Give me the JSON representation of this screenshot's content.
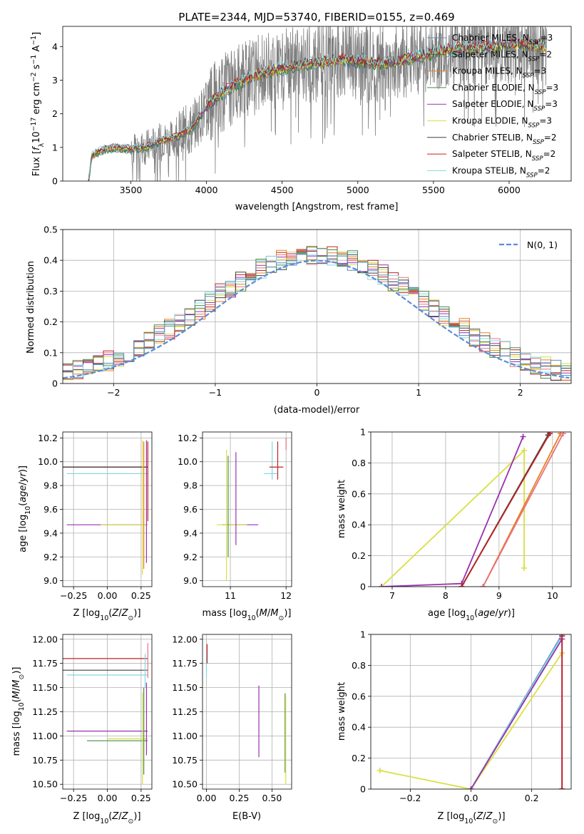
{
  "figure": {
    "title": "PLATE=2344, MJD=53740, FIBERID=0155, z=0.469"
  },
  "chart_data": [
    {
      "id": "spectrum",
      "type": "line",
      "xlabel": "wavelength [Angstrom, rest frame]",
      "ylabel": "Flux [f_λ 10^-17 erg cm^-2 s^-1 A^-1]",
      "xlim": [
        3050,
        6410
      ],
      "ylim": [
        0,
        4.6
      ],
      "xticks": [
        3500,
        4000,
        4500,
        5000,
        5500,
        6000
      ],
      "yticks": [
        0,
        1,
        2,
        3,
        4
      ],
      "grid": false,
      "legend_position": "right",
      "data_x_range": [
        3220,
        6250
      ],
      "data_continuum": {
        "x": [
          3220,
          3240,
          3300,
          3400,
          3500,
          3600,
          3700,
          3800,
          3900,
          4000,
          4100,
          4200,
          4300,
          4400,
          4500,
          4600,
          4700,
          4800,
          4900,
          5000,
          5100,
          5200,
          5300,
          5400,
          5500,
          5600,
          5700,
          5800,
          5900,
          6000,
          6100,
          6200,
          6250
        ],
        "y": [
          0.0,
          0.75,
          0.9,
          1.0,
          0.95,
          1.0,
          1.2,
          1.3,
          1.55,
          2.2,
          2.6,
          2.9,
          3.1,
          3.25,
          3.35,
          3.45,
          3.5,
          3.55,
          3.6,
          3.55,
          3.5,
          3.5,
          3.6,
          3.7,
          3.8,
          3.9,
          3.95,
          4.0,
          4.0,
          4.05,
          4.05,
          4.0,
          4.0
        ]
      },
      "series": [
        {
          "name": "Chabrier MILES, N_SSP=3",
          "color": "#5b8bb8"
        },
        {
          "name": "Salpeter MILES, N_SSP=2",
          "color": "#2a7a2a"
        },
        {
          "name": "Kroupa MILES, N_SSP=3",
          "color": "#e8801f"
        },
        {
          "name": "Chabrier ELODIE, N_SSP=3",
          "color": "#4a8a4a"
        },
        {
          "name": "Salpeter ELODIE, N_SSP=3",
          "color": "#9a30b0"
        },
        {
          "name": "Kroupa ELODIE, N_SSP=3",
          "color": "#d8e040"
        },
        {
          "name": "Chabrier STELIB, N_SSP=2",
          "color": "#404040"
        },
        {
          "name": "Salpeter STELIB, N_SSP=2",
          "color": "#c02020"
        },
        {
          "name": "Kroupa STELIB, N_SSP=2",
          "color": "#80d8e0"
        }
      ]
    },
    {
      "id": "residuals",
      "type": "line",
      "xlabel": "(data-model)/error",
      "ylabel": "Normed distribution",
      "xlim": [
        -2.5,
        2.5
      ],
      "ylim": [
        0,
        0.5
      ],
      "xticks": [
        -2,
        -1,
        0,
        1,
        2
      ],
      "yticks": [
        0.0,
        0.1,
        0.2,
        0.3,
        0.4,
        0.5
      ],
      "grid": true,
      "legend_position": "top-right",
      "legend": [
        "N(0, 1)"
      ],
      "gaussian_color": "#5b8bd8"
    },
    {
      "id": "age-vs-Z",
      "type": "scatter",
      "xlabel": "Z [log10(Z/Z⊙)]",
      "ylabel": "age [log10(age/yr)]",
      "xlim": [
        -0.33,
        0.33
      ],
      "ylim": [
        8.95,
        10.25
      ],
      "xticks": [
        -0.25,
        0.0,
        0.25
      ],
      "xtick_labels": [
        "−0.25",
        "0.00",
        "0.25"
      ],
      "yticks": [
        9.0,
        9.2,
        9.4,
        9.6,
        9.8,
        10.0,
        10.2
      ],
      "yticks_labels": [
        "9.0",
        "9.2",
        "9.4",
        "9.6",
        "9.8",
        "10.0",
        "10.2"
      ],
      "grid": true,
      "segments": [
        {
          "type": "h",
          "y": 9.955,
          "x": [
            -0.33,
            0.3
          ],
          "color": "#c02020"
        },
        {
          "type": "h",
          "y": 9.955,
          "x": [
            -0.33,
            0.3
          ],
          "color": "#404040"
        },
        {
          "type": "h",
          "y": 9.9,
          "x": [
            -0.3,
            0.3
          ],
          "color": "#80d8e0"
        },
        {
          "type": "h",
          "y": 9.47,
          "x": [
            -0.3,
            0.3
          ],
          "color": "#9a30b0"
        },
        {
          "type": "h",
          "y": 9.47,
          "x": [
            -0.05,
            0.3
          ],
          "color": "#d8e040"
        },
        {
          "type": "v",
          "x": 0.26,
          "y": [
            9.05,
            10.18
          ],
          "color": "#d8e040"
        },
        {
          "type": "v",
          "x": 0.27,
          "y": [
            9.1,
            10.17
          ],
          "color": "#e8801f"
        },
        {
          "type": "v",
          "x": 0.29,
          "y": [
            9.15,
            10.18
          ],
          "color": "#9a30b0"
        },
        {
          "type": "v",
          "x": 0.3,
          "y": [
            9.5,
            10.17
          ],
          "color": "#c02020"
        }
      ]
    },
    {
      "id": "age-vs-mass",
      "type": "scatter",
      "xlabel": "mass [log10(M/M⊙)]",
      "ylabel": "",
      "xlim": [
        10.5,
        12.1
      ],
      "ylim": [
        8.95,
        10.25
      ],
      "xticks": [
        11,
        12
      ],
      "yticks": [
        9.0,
        9.2,
        9.4,
        9.6,
        9.8,
        10.0,
        10.2
      ],
      "yticks_labels": [
        "9.0",
        "9.2",
        "9.4",
        "9.6",
        "9.8",
        "10.0",
        "10.2"
      ],
      "grid": true,
      "segments": [
        {
          "type": "h",
          "y": 9.47,
          "x": [
            10.85,
            11.5
          ],
          "color": "#9a30b0"
        },
        {
          "type": "h",
          "y": 9.47,
          "x": [
            10.75,
            11.3
          ],
          "color": "#d8e040"
        },
        {
          "type": "v",
          "x": 10.93,
          "y": [
            9.0,
            10.1
          ],
          "color": "#d8e040"
        },
        {
          "type": "v",
          "x": 10.96,
          "y": [
            9.2,
            10.05
          ],
          "color": "#4a8a4a"
        },
        {
          "type": "v",
          "x": 11.1,
          "y": [
            9.3,
            10.08
          ],
          "color": "#9a30b0"
        },
        {
          "type": "v",
          "x": 11.75,
          "y": [
            9.85,
            10.17
          ],
          "color": "#80d8e0"
        },
        {
          "type": "h",
          "y": 9.9,
          "x": [
            11.6,
            11.85
          ],
          "color": "#80d8e0"
        },
        {
          "type": "h",
          "y": 9.955,
          "x": [
            11.7,
            11.95
          ],
          "color": "#c02020"
        },
        {
          "type": "v",
          "x": 11.85,
          "y": [
            9.85,
            10.17
          ],
          "color": "#c02020"
        },
        {
          "type": "v",
          "x": 12.0,
          "y": [
            10.1,
            10.2
          ],
          "color": "#e87080"
        }
      ]
    },
    {
      "id": "massweight-vs-age",
      "type": "line",
      "xlabel": "age [log10(age/yr)]",
      "ylabel": "mass weight",
      "xlim": [
        6.6,
        10.35
      ],
      "ylim": [
        0,
        1
      ],
      "xticks": [
        7,
        8,
        9,
        10
      ],
      "yticks": [
        0.0,
        0.2,
        0.4,
        0.6,
        0.8,
        1.0
      ],
      "grid": true,
      "series": [
        {
          "color": "#d8e040",
          "x": [
            6.8,
            9.47,
            9.47
          ],
          "y": [
            0.0,
            0.88,
            0.12
          ]
        },
        {
          "color": "#9a30b0",
          "x": [
            6.8,
            8.3,
            9.45
          ],
          "y": [
            0.0,
            0.02,
            0.97
          ]
        },
        {
          "color": "#80d8e0",
          "x": [
            8.3,
            9.95
          ],
          "y": [
            0.0,
            1.0
          ]
        },
        {
          "color": "#404040",
          "x": [
            8.3,
            9.92
          ],
          "y": [
            0.0,
            0.98
          ]
        },
        {
          "color": "#c02020",
          "x": [
            8.3,
            9.95
          ],
          "y": [
            0.0,
            0.99
          ]
        },
        {
          "color": "#e8801f",
          "x": [
            8.7,
            10.15
          ],
          "y": [
            0.0,
            0.99
          ]
        },
        {
          "color": "#e87080",
          "x": [
            8.7,
            10.2
          ],
          "y": [
            0.0,
            0.99
          ]
        }
      ]
    },
    {
      "id": "mass-vs-Z",
      "type": "scatter",
      "xlabel": "Z [log10(Z/Z⊙)]",
      "ylabel": "mass [log10(M/M⊙)]",
      "xlim": [
        -0.33,
        0.33
      ],
      "ylim": [
        10.45,
        12.05
      ],
      "xticks": [
        -0.25,
        0.0,
        0.25
      ],
      "xtick_labels": [
        "−0.25",
        "0.00",
        "0.25"
      ],
      "yticks": [
        10.5,
        10.75,
        11.0,
        11.25,
        11.5,
        11.75,
        12.0
      ],
      "yticks_labels": [
        "10.50",
        "10.75",
        "11.00",
        "11.25",
        "11.50",
        "11.75",
        "12.00"
      ],
      "grid": true,
      "segments": [
        {
          "type": "h",
          "y": 11.8,
          "x": [
            -0.33,
            0.3
          ],
          "color": "#c02020"
        },
        {
          "type": "h",
          "y": 11.68,
          "x": [
            -0.33,
            0.3
          ],
          "color": "#404040"
        },
        {
          "type": "h",
          "y": 11.63,
          "x": [
            -0.3,
            0.3
          ],
          "color": "#80d8e0"
        },
        {
          "type": "h",
          "y": 11.05,
          "x": [
            -0.3,
            0.3
          ],
          "color": "#9a30b0"
        },
        {
          "type": "h",
          "y": 10.95,
          "x": [
            -0.15,
            0.3
          ],
          "color": "#4a8a4a"
        },
        {
          "type": "h",
          "y": 10.97,
          "x": [
            0.0,
            0.3
          ],
          "color": "#d8e040"
        },
        {
          "type": "v",
          "x": 0.26,
          "y": [
            10.5,
            11.45
          ],
          "color": "#d8e040"
        },
        {
          "type": "v",
          "x": 0.27,
          "y": [
            10.6,
            11.5
          ],
          "color": "#4a8a4a"
        },
        {
          "type": "v",
          "x": 0.29,
          "y": [
            10.8,
            11.55
          ],
          "color": "#9a30b0"
        },
        {
          "type": "v",
          "x": 0.3,
          "y": [
            11.6,
            11.96
          ],
          "color": "#e87080"
        },
        {
          "type": "v",
          "x": 0.28,
          "y": [
            11.5,
            11.85
          ],
          "color": "#80d8e0"
        }
      ]
    },
    {
      "id": "mass-vs-ebv",
      "type": "scatter",
      "xlabel": "E(B-V)",
      "ylabel": "",
      "xlim": [
        -0.03,
        0.65
      ],
      "ylim": [
        10.45,
        12.05
      ],
      "xticks": [
        0.0,
        0.25,
        0.5
      ],
      "xtick_labels": [
        "0.00",
        "0.25",
        "0.50"
      ],
      "yticks": [
        10.5,
        10.75,
        11.0,
        11.25,
        11.5,
        11.75,
        12.0
      ],
      "yticks_labels": [
        "10.50",
        "10.75",
        "11.00",
        "11.25",
        "11.50",
        "11.75",
        "12.00"
      ],
      "grid": true,
      "segments": [
        {
          "type": "v",
          "x": 0.0,
          "y": [
            11.6,
            11.85
          ],
          "color": "#80d8e0"
        },
        {
          "type": "v",
          "x": 0.005,
          "y": [
            11.75,
            11.95
          ],
          "color": "#c02020"
        },
        {
          "type": "v",
          "x": 0.4,
          "y": [
            10.78,
            11.52
          ],
          "color": "#9a30b0"
        },
        {
          "type": "v",
          "x": 0.6,
          "y": [
            10.62,
            11.44
          ],
          "color": "#4a8a4a"
        },
        {
          "type": "v",
          "x": 0.605,
          "y": [
            10.5,
            11.42
          ],
          "color": "#d8e040"
        }
      ]
    },
    {
      "id": "massweight-vs-Z",
      "type": "line",
      "xlabel": "Z [log10(Z/Z⊙)]",
      "ylabel": "mass weight",
      "xlim": [
        -0.33,
        0.33
      ],
      "ylim": [
        0,
        1
      ],
      "xticks": [
        -0.2,
        0.0,
        0.2
      ],
      "xtick_labels": [
        "−0.2",
        "0.0",
        "0.2"
      ],
      "yticks": [
        0.0,
        0.2,
        0.4,
        0.6,
        0.8,
        1.0
      ],
      "grid": true,
      "series": [
        {
          "color": "#d8e040",
          "x": [
            -0.3,
            0.0,
            0.3
          ],
          "y": [
            0.12,
            0.0,
            0.88
          ]
        },
        {
          "color": "#5b8bb8",
          "x": [
            0.0,
            0.3
          ],
          "y": [
            0.0,
            1.0
          ]
        },
        {
          "color": "#80d8e0",
          "x": [
            0.0,
            0.3
          ],
          "y": [
            0.0,
            0.99
          ]
        },
        {
          "color": "#9a30b0",
          "x": [
            0.0,
            0.3,
            0.3
          ],
          "y": [
            0.0,
            0.97,
            0.0
          ]
        },
        {
          "color": "#c02020",
          "x": [
            0.3,
            0.3
          ],
          "y": [
            0.0,
            0.99
          ]
        }
      ]
    }
  ]
}
